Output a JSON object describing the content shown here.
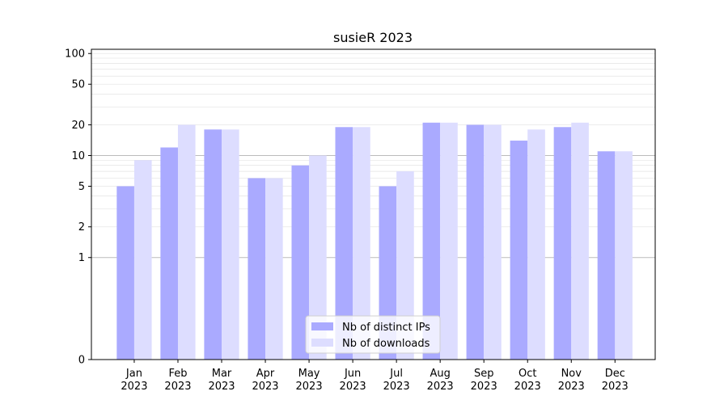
{
  "chart_data": {
    "type": "bar",
    "title": "susieR 2023",
    "xlabel": "",
    "ylabel": "",
    "y_scale": "symlog",
    "ylim": [
      0,
      110
    ],
    "grid": true,
    "legend_position": "bottom-center",
    "y_ticks": [
      0,
      1,
      2,
      5,
      10,
      20,
      50,
      100
    ],
    "y_tick_labels": [
      "0",
      "1",
      "2",
      "5",
      "10",
      "20",
      "50",
      "100"
    ],
    "categories": [
      [
        "Jan",
        "2023"
      ],
      [
        "Feb",
        "2023"
      ],
      [
        "Mar",
        "2023"
      ],
      [
        "Apr",
        "2023"
      ],
      [
        "May",
        "2023"
      ],
      [
        "Jun",
        "2023"
      ],
      [
        "Jul",
        "2023"
      ],
      [
        "Aug",
        "2023"
      ],
      [
        "Sep",
        "2023"
      ],
      [
        "Oct",
        "2023"
      ],
      [
        "Nov",
        "2023"
      ],
      [
        "Dec",
        "2023"
      ]
    ],
    "series": [
      {
        "name": "Nb of distinct IPs",
        "color": "#aaaaff",
        "values": [
          5,
          12,
          18,
          6,
          8,
          19,
          5,
          21,
          20,
          14,
          19,
          11
        ]
      },
      {
        "name": "Nb of downloads",
        "color": "#ddddff",
        "values": [
          9,
          20,
          18,
          6,
          10,
          19,
          7,
          21,
          20,
          18,
          21,
          11
        ]
      }
    ]
  }
}
